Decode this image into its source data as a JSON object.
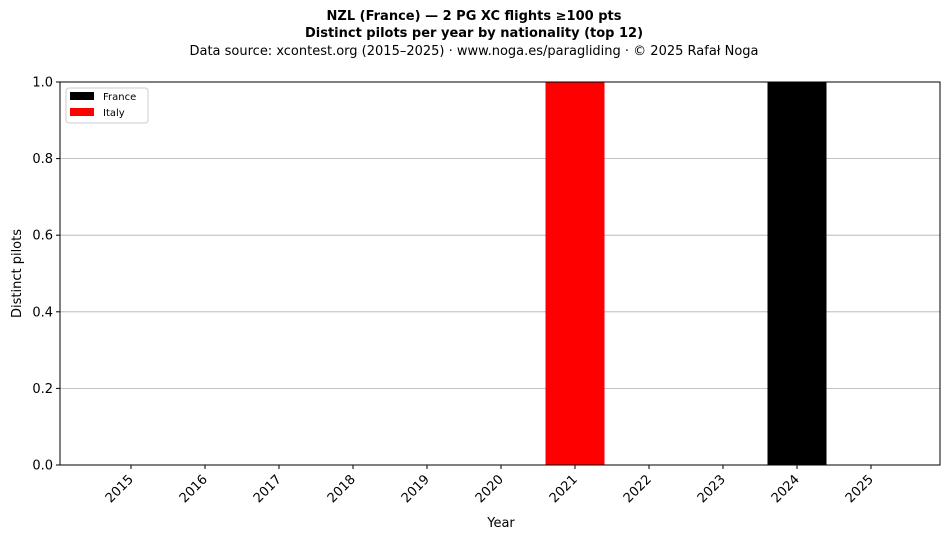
{
  "chart_data": {
    "type": "bar",
    "stacked": true,
    "title_line1": "NZL (France)  —  2 PG XC flights ≥100 pts",
    "title_line2": "Distinct pilots per year by nationality (top 12)",
    "subtitle": "Data source: xcontest.org (2015–2025)  ·  www.noga.es/paragliding  ·  © 2025 Rafał Noga",
    "xlabel": "Year",
    "ylabel": "Distinct pilots",
    "categories": [
      "2015",
      "2016",
      "2017",
      "2018",
      "2019",
      "2020",
      "2021",
      "2022",
      "2023",
      "2024",
      "2025"
    ],
    "series": [
      {
        "name": "France",
        "color": "#000000",
        "values": [
          0,
          0,
          0,
          0,
          0,
          0,
          0,
          0,
          0,
          1,
          0
        ]
      },
      {
        "name": "Italy",
        "color": "#ff0000",
        "values": [
          0,
          0,
          0,
          0,
          0,
          0,
          1,
          0,
          0,
          0,
          0
        ]
      }
    ],
    "ylim": [
      0,
      1
    ],
    "yticks": [
      "0.0",
      "0.2",
      "0.4",
      "0.6",
      "0.8",
      "1.0"
    ],
    "grid": "y",
    "legend_position": "top-left"
  }
}
